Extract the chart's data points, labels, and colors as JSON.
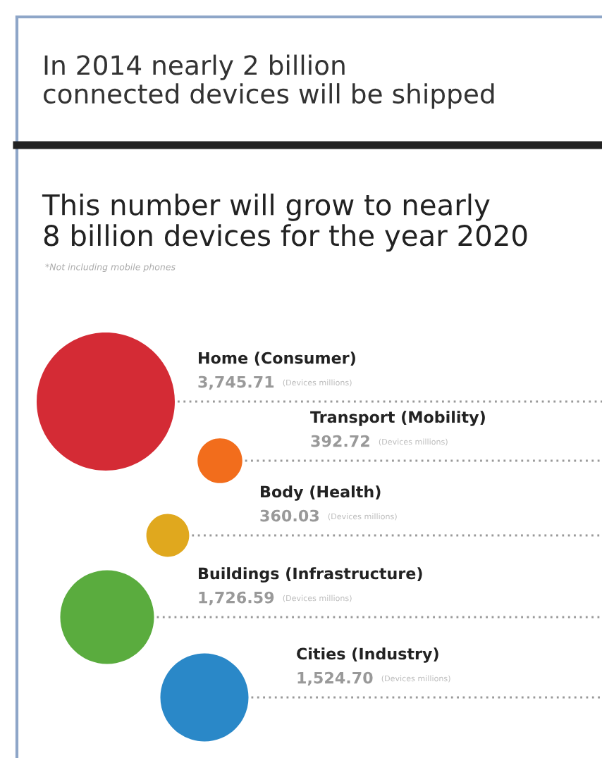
{
  "chart_data": {
    "type": "other",
    "title": "In 2014 nearly 2 billion\nconnected devices will be shipped",
    "subtitle": "This number will grow to nearly\n8 billion devices for the year 2020",
    "annotations": [
      "*Not including mobile phones"
    ],
    "xlabel": "(Devices millions)",
    "categories": [
      "Home (Consumer)",
      "Transport (Mobility)",
      "Body (Health)",
      "Buildings (Infrastructure)",
      "Cities (Industry)"
    ],
    "values": [
      3745.71,
      392.72,
      360.03,
      1726.59,
      1524.7
    ],
    "value_labels": [
      "3,745.71",
      "392.72",
      "360.03",
      "1,726.59",
      "1,524.70"
    ],
    "colors": [
      "#d42b35",
      "#f26d1c",
      "#e0a81e",
      "#5aac3e",
      "#2a88c8"
    ]
  }
}
